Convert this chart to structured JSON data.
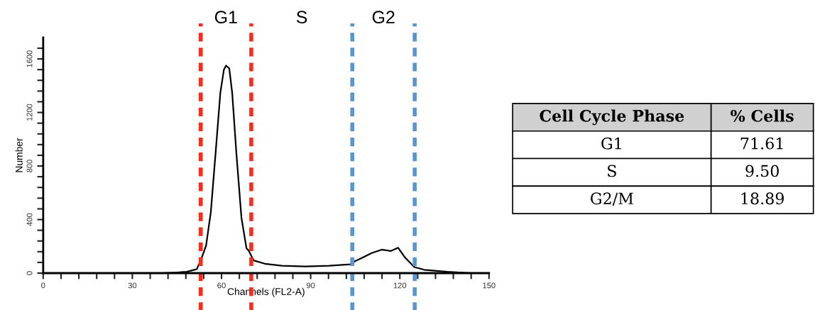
{
  "chart_data": [
    {
      "type": "line",
      "xlabel": "Channels (FL2-A)",
      "ylabel": "Number",
      "x": [
        0,
        20,
        40,
        45,
        48.3,
        51.7,
        53,
        54.8,
        56.4,
        58,
        59.6,
        60.8,
        61.5,
        62.6,
        63.6,
        65,
        66.7,
        68.4,
        69.1,
        70.8,
        74.6,
        80.4,
        88.3,
        96.2,
        103.3,
        105,
        107.4,
        110.5,
        113.9,
        117,
        119.4,
        121.8,
        124.9,
        128.2,
        136,
        144,
        150
      ],
      "series": [
        {
          "color": "#000000",
          "values": [
            0,
            0,
            0,
            5,
            10,
            30,
            95,
            205,
            455,
            895,
            1345,
            1520,
            1550,
            1530,
            1345,
            895,
            415,
            185,
            170,
            95,
            70,
            55,
            50,
            55,
            65,
            90,
            115,
            150,
            175,
            165,
            190,
            115,
            45,
            25,
            10,
            0,
            0
          ]
        }
      ],
      "xlim": [
        0,
        150
      ],
      "ylim": [
        0,
        1760
      ],
      "xticks": [
        0,
        {
          "value": 6,
          "label": null
        },
        {
          "value": 12,
          "label": null
        },
        {
          "value": 18,
          "label": null
        },
        {
          "value": 24,
          "label": null
        },
        30,
        {
          "value": 36,
          "label": null
        },
        {
          "value": 42,
          "label": null
        },
        {
          "value": 48,
          "label": null
        },
        {
          "value": 54,
          "label": null
        },
        60,
        {
          "value": 66,
          "label": null
        },
        {
          "value": 72,
          "label": null
        },
        {
          "value": 78,
          "label": null
        },
        {
          "value": 84,
          "label": null
        },
        90,
        {
          "value": 96,
          "label": null
        },
        {
          "value": 102,
          "label": null
        },
        {
          "value": 108,
          "label": null
        },
        {
          "value": 114,
          "label": null
        },
        120,
        {
          "value": 126,
          "label": null
        },
        {
          "value": 132,
          "label": null
        },
        {
          "value": 138,
          "label": null
        },
        {
          "value": 144,
          "label": null
        },
        150
      ],
      "yticks": [
        0,
        {
          "value": 80,
          "label": null
        },
        {
          "value": 160,
          "label": null
        },
        {
          "value": 240,
          "label": null
        },
        {
          "value": 320,
          "label": null
        },
        400,
        {
          "value": 480,
          "label": null
        },
        {
          "value": 560,
          "label": null
        },
        {
          "value": 640,
          "label": null
        },
        {
          "value": 720,
          "label": null
        },
        800,
        {
          "value": 880,
          "label": null
        },
        {
          "value": 960,
          "label": null
        },
        {
          "value": 1040,
          "label": null
        },
        {
          "value": 1120,
          "label": null
        },
        1200,
        {
          "value": 1280,
          "label": null
        },
        {
          "value": 1360,
          "label": null
        },
        {
          "value": 1440,
          "label": null
        },
        {
          "value": 1520,
          "label": null
        },
        1600,
        {
          "value": 1680,
          "label": null
        }
      ],
      "ref_lines": [
        {
          "axis": "x",
          "value": 53,
          "color": "#ff2a1a",
          "line_style": "dashed"
        },
        {
          "axis": "x",
          "value": 70,
          "color": "#ff2a1a",
          "line_style": "dashed"
        },
        {
          "axis": "x",
          "value": 104,
          "color": "#5b95cc",
          "line_style": "dashed"
        },
        {
          "axis": "x",
          "value": 125,
          "color": "#5b95cc",
          "line_style": "dashed"
        }
      ],
      "annotations": [
        "G1",
        "S",
        "G2"
      ],
      "grid": false,
      "marker": "none",
      "line_style": "solid"
    },
    {
      "type": "other",
      "xlabel": "Cell Cycle Phase",
      "ylabel": "% Cells",
      "categories": [
        "G1",
        "S",
        "G2/M"
      ],
      "values": [
        71.61,
        9.5,
        18.89
      ],
      "value_labels": [
        "71.61",
        "9.50",
        "18.89"
      ]
    }
  ]
}
